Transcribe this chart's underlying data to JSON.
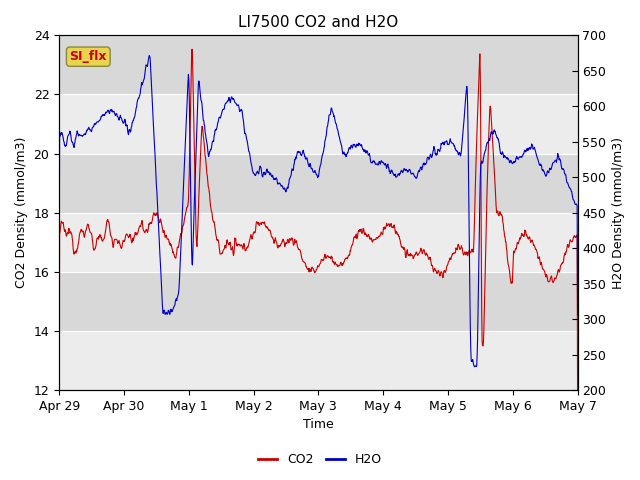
{
  "title": "LI7500 CO2 and H2O",
  "xlabel": "Time",
  "ylabel_left": "CO2 Density (mmol/m3)",
  "ylabel_right": "H2O Density (mmol/m3)",
  "co2_ylim": [
    12,
    24
  ],
  "h2o_ylim": [
    200,
    700
  ],
  "co2_yticks": [
    12,
    14,
    16,
    18,
    20,
    22,
    24
  ],
  "h2o_yticks": [
    200,
    250,
    300,
    350,
    400,
    450,
    500,
    550,
    600,
    650,
    700
  ],
  "xtick_positions": [
    0,
    1,
    2,
    3,
    4,
    5,
    6,
    7,
    8
  ],
  "xtick_labels": [
    "Apr 29",
    "Apr 30",
    "May 1",
    "May 2",
    "May 3",
    "May 4",
    "May 5",
    "May 6",
    "May 7"
  ],
  "annotation_text": "SI_flx",
  "annotation_bbox_fc": "#e8d44d",
  "annotation_bbox_ec": "#888844",
  "bg_light": "#ececec",
  "bg_dark": "#d8d8d8",
  "co2_color": "#cc0000",
  "h2o_color": "#0000cc",
  "legend_co2": "CO2",
  "legend_h2o": "H2O",
  "title_fontsize": 11,
  "label_fontsize": 9,
  "tick_fontsize": 9
}
